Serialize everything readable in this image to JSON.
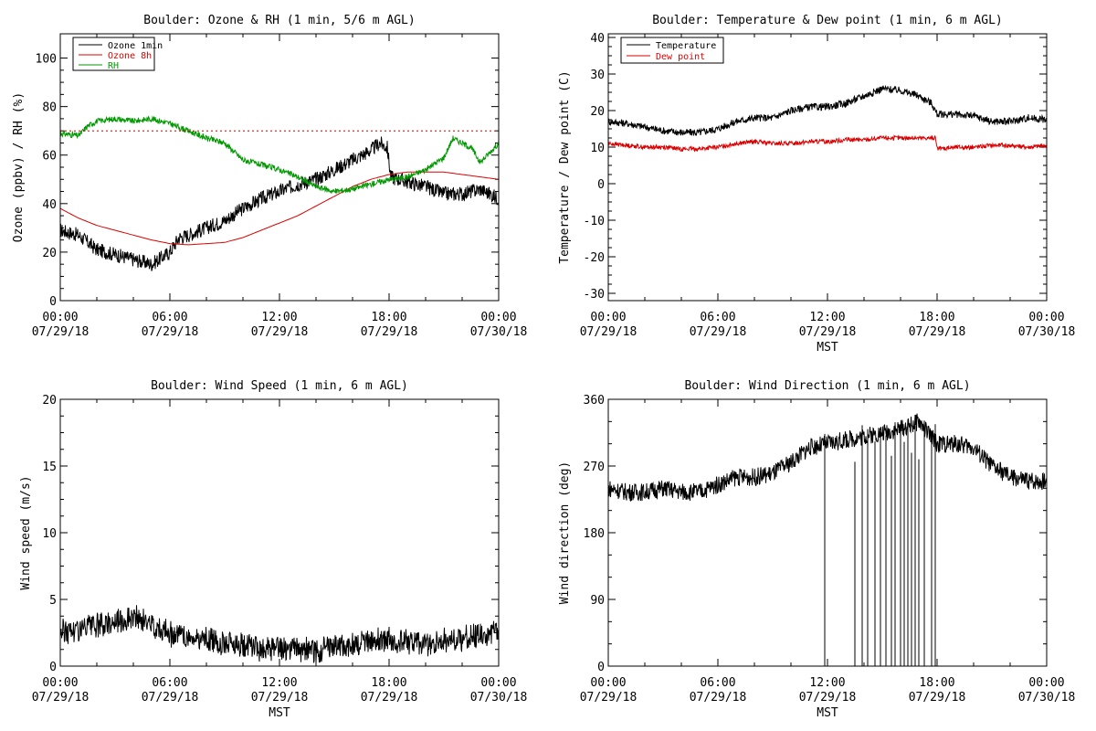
{
  "figure": {
    "panels": [
      {
        "id": "ozone_rh",
        "title": "Boulder: Ozone & RH (1 min, 5/6 m AGL)",
        "ylabel": "Ozone (ppbv) / RH (%)",
        "xlabel": "",
        "ylim": [
          0,
          110
        ],
        "yticks": [
          0,
          20,
          40,
          60,
          80,
          100
        ],
        "reference_line": {
          "y": 70,
          "color": "#cc0000",
          "style": "dotted"
        },
        "legend": [
          {
            "label": "Ozone 1min",
            "color": "#000000"
          },
          {
            "label": "Ozone 8h",
            "color": "#dd0000"
          },
          {
            "label": "RH",
            "color": "#009900"
          }
        ]
      },
      {
        "id": "temp_dew",
        "title": "Boulder: Temperature & Dew point (1 min, 6 m AGL)",
        "ylabel": "Temperature / Dew point (C)",
        "xlabel": "MST",
        "ylim": [
          -32,
          41
        ],
        "yticks": [
          -30,
          -20,
          -10,
          0,
          10,
          20,
          30,
          40
        ],
        "legend": [
          {
            "label": "Temperature",
            "color": "#000000"
          },
          {
            "label": "Dew point",
            "color": "#dd0000"
          }
        ]
      },
      {
        "id": "wind_speed",
        "title": "Boulder: Wind Speed (1 min, 6 m AGL)",
        "ylabel": "Wind speed (m/s)",
        "xlabel": "MST",
        "ylim": [
          0,
          20
        ],
        "yticks": [
          0,
          5,
          10,
          15,
          20
        ]
      },
      {
        "id": "wind_dir",
        "title": "Boulder: Wind Direction (1 min, 6 m AGL)",
        "ylabel": "Wind direction (deg)",
        "xlabel": "MST",
        "ylim": [
          0,
          360
        ],
        "yticks": [
          0,
          90,
          180,
          270,
          360
        ]
      }
    ],
    "x_ticks": [
      {
        "h": 0,
        "time": "00:00",
        "date": "07/29/18"
      },
      {
        "h": 6,
        "time": "06:00",
        "date": "07/29/18"
      },
      {
        "h": 12,
        "time": "12:00",
        "date": "07/29/18"
      },
      {
        "h": 18,
        "time": "18:00",
        "date": "07/29/18"
      },
      {
        "h": 24,
        "time": "00:00",
        "date": "07/30/18"
      }
    ]
  },
  "chart_data": [
    {
      "type": "line",
      "title": "Boulder: Ozone & RH (1 min, 5/6 m AGL)",
      "xlabel": "",
      "ylabel": "Ozone (ppbv) / RH (%)",
      "xlim": [
        "07/29/18 00:00",
        "07/30/18 00:00"
      ],
      "ylim": [
        0,
        110
      ],
      "grid": false,
      "legend_position": "top-left",
      "series": [
        {
          "name": "Ozone 1min",
          "color": "#000000",
          "x": [
            0,
            1,
            2,
            3,
            4,
            5,
            6,
            6.5,
            7,
            8,
            9,
            10,
            11,
            12,
            13,
            14,
            15,
            16,
            17,
            17.5,
            17.9,
            18.1,
            19,
            20,
            21,
            22,
            23,
            24
          ],
          "y": [
            29,
            27,
            21,
            19,
            17,
            15,
            20,
            26,
            27,
            30,
            33,
            38,
            42,
            45,
            48,
            50,
            54,
            58,
            62,
            65,
            63,
            51,
            49,
            47,
            44,
            44,
            46,
            42
          ]
        },
        {
          "name": "Ozone 8h",
          "color": "#dd0000",
          "x": [
            0,
            1,
            2,
            3,
            4,
            5,
            6,
            7,
            8,
            9,
            10,
            11,
            12,
            13,
            14,
            15,
            16,
            17,
            18,
            19,
            20,
            21,
            22,
            23,
            24
          ],
          "y": [
            38,
            34,
            31,
            29,
            27,
            25,
            23.5,
            23,
            23.5,
            24,
            26,
            29,
            32,
            35,
            39,
            43,
            47,
            50,
            52,
            53,
            53,
            53,
            52,
            51,
            50
          ]
        },
        {
          "name": "RH",
          "color": "#009900",
          "x": [
            0,
            1,
            1.5,
            2,
            3,
            4,
            5,
            6,
            7,
            8,
            9,
            10,
            11,
            12,
            13,
            14,
            15,
            16,
            17,
            18,
            19,
            20,
            21,
            21.5,
            22,
            22.5,
            23,
            24
          ],
          "y": [
            69,
            68,
            72,
            74,
            75,
            74,
            75,
            73,
            70,
            67,
            65,
            58,
            56,
            54,
            51,
            47,
            45,
            46,
            48,
            50,
            51,
            54,
            59,
            67,
            65,
            63,
            57,
            65
          ]
        },
        {
          "name": "Ozone 8h threshold",
          "color": "#cc0000",
          "x": [
            0,
            24
          ],
          "y": [
            70,
            70
          ]
        }
      ]
    },
    {
      "type": "line",
      "title": "Boulder: Temperature & Dew point (1 min, 6 m AGL)",
      "xlabel": "MST",
      "ylabel": "Temperature / Dew point (C)",
      "xlim": [
        "07/29/18 00:00",
        "07/30/18 00:00"
      ],
      "ylim": [
        -32,
        41
      ],
      "grid": false,
      "legend_position": "top-left",
      "series": [
        {
          "name": "Temperature",
          "color": "#000000",
          "x": [
            0,
            1,
            2,
            3,
            4,
            5,
            6,
            7,
            8,
            9,
            10,
            11,
            12,
            13,
            14,
            15,
            16,
            17,
            17.7,
            18,
            19,
            20,
            21,
            22,
            23,
            24
          ],
          "y": [
            17,
            16.5,
            15.5,
            14.5,
            14,
            14,
            15,
            17,
            18,
            18,
            20,
            21,
            21,
            22,
            24,
            26,
            25.5,
            24,
            22,
            19,
            19,
            18.5,
            17,
            17,
            18,
            17.5
          ]
        },
        {
          "name": "Dew point",
          "color": "#dd0000",
          "x": [
            0,
            1,
            2,
            3,
            4,
            5,
            6,
            7,
            8,
            9,
            10,
            11,
            12,
            13,
            14,
            15,
            16,
            17,
            17.9,
            18,
            19,
            20,
            21,
            22,
            23,
            24
          ],
          "y": [
            11,
            10.5,
            10,
            10,
            9.5,
            9.5,
            10,
            11,
            11.5,
            11,
            11,
            11.5,
            11.5,
            12,
            12,
            12.5,
            12.5,
            12.5,
            12.5,
            9.5,
            10,
            10,
            10.5,
            10.5,
            10,
            10.5
          ]
        }
      ]
    },
    {
      "type": "line",
      "title": "Boulder: Wind Speed (1 min, 6 m AGL)",
      "xlabel": "MST",
      "ylabel": "Wind speed (m/s)",
      "xlim": [
        "07/29/18 00:00",
        "07/30/18 00:00"
      ],
      "ylim": [
        0,
        20
      ],
      "grid": false,
      "series": [
        {
          "name": "Wind speed",
          "color": "#000000",
          "x": [
            0,
            1,
            2,
            3,
            4,
            5,
            6,
            7,
            8,
            9,
            10,
            11,
            12,
            13,
            14,
            15,
            16,
            17,
            18,
            19,
            20,
            21,
            22,
            23,
            24
          ],
          "y": [
            2.4,
            2.6,
            2.8,
            3.2,
            3.5,
            3.0,
            2.3,
            2.0,
            1.8,
            1.6,
            1.4,
            1.2,
            1.1,
            1.1,
            1.0,
            1.3,
            1.5,
            1.8,
            1.9,
            1.6,
            1.5,
            1.7,
            1.9,
            2.2,
            2.6
          ]
        }
      ]
    },
    {
      "type": "line",
      "title": "Boulder: Wind Direction (1 min, 6 m AGL)",
      "xlabel": "MST",
      "ylabel": "Wind direction (deg)",
      "xlim": [
        "07/29/18 00:00",
        "07/30/18 00:00"
      ],
      "ylim": [
        0,
        360
      ],
      "grid": false,
      "series": [
        {
          "name": "Wind direction",
          "color": "#000000",
          "x": [
            0,
            1,
            2,
            3,
            4,
            5,
            6,
            7,
            8,
            9,
            10,
            11,
            12,
            13,
            14,
            15,
            16,
            17,
            18,
            19,
            20,
            21,
            22,
            23,
            24
          ],
          "y": [
            240,
            235,
            235,
            240,
            235,
            235,
            245,
            255,
            255,
            260,
            275,
            295,
            300,
            305,
            310,
            315,
            320,
            330,
            300,
            300,
            295,
            270,
            255,
            250,
            250
          ]
        }
      ]
    }
  ]
}
